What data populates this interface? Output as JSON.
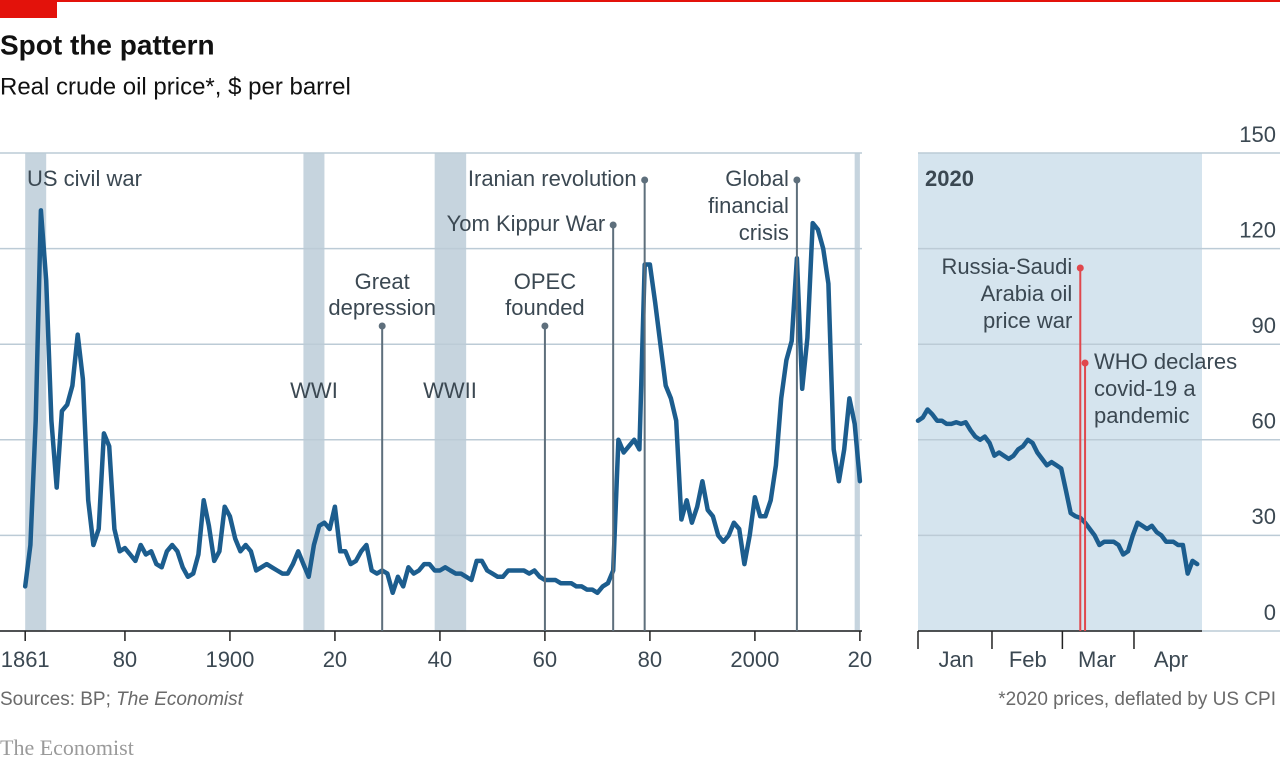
{
  "title": "Spot the pattern",
  "subtitle": "Real crude oil price*, $ per barrel",
  "chart_data": [
    {
      "type": "line",
      "color": "#1c5d8e",
      "x": [
        1861,
        1862,
        1863,
        1864,
        1865,
        1866,
        1867,
        1868,
        1869,
        1870,
        1871,
        1872,
        1873,
        1874,
        1875,
        1876,
        1877,
        1878,
        1879,
        1880,
        1881,
        1882,
        1883,
        1884,
        1885,
        1886,
        1887,
        1888,
        1889,
        1890,
        1891,
        1892,
        1893,
        1894,
        1895,
        1896,
        1897,
        1898,
        1899,
        1900,
        1901,
        1902,
        1903,
        1904,
        1905,
        1906,
        1907,
        1908,
        1909,
        1910,
        1911,
        1912,
        1913,
        1914,
        1915,
        1916,
        1917,
        1918,
        1919,
        1920,
        1921,
        1922,
        1923,
        1924,
        1925,
        1926,
        1927,
        1928,
        1929,
        1930,
        1931,
        1932,
        1933,
        1934,
        1935,
        1936,
        1937,
        1938,
        1939,
        1940,
        1941,
        1942,
        1943,
        1944,
        1945,
        1946,
        1947,
        1948,
        1949,
        1950,
        1951,
        1952,
        1953,
        1954,
        1955,
        1956,
        1957,
        1958,
        1959,
        1960,
        1961,
        1962,
        1963,
        1964,
        1965,
        1966,
        1967,
        1968,
        1969,
        1970,
        1971,
        1972,
        1973,
        1974,
        1975,
        1976,
        1977,
        1978,
        1979,
        1980,
        1981,
        1982,
        1983,
        1984,
        1985,
        1986,
        1987,
        1988,
        1989,
        1990,
        1991,
        1992,
        1993,
        1994,
        1995,
        1996,
        1997,
        1998,
        1999,
        2000,
        2001,
        2002,
        2003,
        2004,
        2005,
        2006,
        2007,
        2008,
        2009,
        2010,
        2011,
        2012,
        2013,
        2014,
        2015,
        2016,
        2017,
        2018,
        2019,
        2020
      ],
      "values": [
        14,
        27,
        66,
        132,
        110,
        66,
        45,
        69,
        71,
        77,
        93,
        79,
        41,
        27,
        32,
        62,
        58,
        32,
        25,
        26,
        24,
        22,
        27,
        24,
        25,
        21,
        20,
        25,
        27,
        25,
        20,
        17,
        18,
        24,
        41,
        33,
        22,
        25,
        39,
        36,
        29,
        25,
        27,
        25,
        19,
        20,
        21,
        20,
        19,
        18,
        18,
        21,
        25,
        21,
        17,
        27,
        33,
        34,
        32,
        39,
        25,
        25,
        21,
        22,
        25,
        27,
        19,
        18,
        19,
        18,
        12,
        17,
        14,
        20,
        18,
        19,
        21,
        21,
        19,
        19,
        20,
        19,
        18,
        18,
        17,
        16,
        22,
        22,
        19,
        18,
        17,
        17,
        19,
        19,
        19,
        19,
        18,
        19,
        17,
        16,
        16,
        16,
        15,
        15,
        15,
        14,
        14,
        13,
        13,
        12,
        14,
        15,
        19,
        60,
        56,
        58,
        60,
        57,
        115,
        115,
        103,
        90,
        77,
        73,
        66,
        35,
        41,
        34,
        39,
        47,
        38,
        36,
        30,
        28,
        30,
        34,
        32,
        21,
        30,
        42,
        36,
        36,
        41,
        52,
        73,
        85,
        91,
        117,
        76,
        92,
        128,
        126,
        120,
        109,
        57,
        47,
        57,
        73,
        65,
        47
      ],
      "xlim": [
        1856.2,
        2020.4
      ],
      "xticks": [
        1861,
        {
          "value": 1880,
          "label": "80"
        },
        1900,
        {
          "value": 1920,
          "label": "20"
        },
        {
          "value": 1940,
          "label": "40"
        },
        {
          "value": 1960,
          "label": "60"
        },
        {
          "value": 1980,
          "label": "80"
        },
        2000,
        {
          "value": 2020,
          "label": "20"
        }
      ],
      "ylim": [
        0,
        150
      ],
      "yticks": [
        0,
        30,
        60,
        90,
        120,
        150
      ],
      "grid": true,
      "band_color": "#c6d4de",
      "shaded_periods": [
        {
          "label": "US civil war",
          "range": [
            1861,
            1865
          ]
        },
        {
          "label": "WWI",
          "range": [
            1914,
            1918
          ]
        },
        {
          "label": "WWII",
          "range": [
            1939,
            1945
          ]
        },
        {
          "range": [
            2019,
            2020
          ]
        }
      ],
      "event_color": "#5e6f7c",
      "events": [
        {
          "label": [
            "Great",
            "depression"
          ],
          "x": 1929
        },
        {
          "label": [
            "OPEC",
            "founded"
          ],
          "x": 1960
        },
        {
          "label": [
            "Yom Kippur War"
          ],
          "x": 1973
        },
        {
          "label": [
            "Iranian revolution"
          ],
          "x": 1979
        },
        {
          "label": [
            "Global",
            "financial",
            "crisis"
          ],
          "x": 2008
        }
      ]
    },
    {
      "type": "line",
      "title": "2020",
      "color": "#1c5d8e",
      "background": "#d5e4ee",
      "x": [
        0,
        2,
        4,
        6,
        8,
        10,
        12,
        14,
        16,
        18,
        20,
        22,
        24,
        26,
        28,
        30,
        32,
        34,
        36,
        38,
        40,
        42,
        44,
        46,
        48,
        50,
        52,
        54,
        56,
        58,
        60,
        62,
        64,
        66,
        68,
        70,
        72,
        74,
        76,
        78,
        80,
        82,
        84,
        86,
        88,
        90,
        92,
        94,
        96,
        98,
        100,
        102,
        104,
        107,
        109,
        111,
        113,
        115,
        117
      ],
      "values": [
        66,
        67,
        69.5,
        68,
        66,
        66,
        65,
        65,
        65.5,
        65,
        65.5,
        63,
        61,
        60,
        61,
        59,
        55,
        56,
        55,
        54,
        55,
        57,
        58,
        60,
        59,
        56,
        54,
        52,
        53,
        52,
        51,
        44,
        37,
        36,
        35.5,
        34,
        32,
        30,
        27,
        28,
        28,
        28,
        27,
        24,
        25,
        30,
        34,
        33,
        32,
        33,
        31,
        30,
        28,
        28,
        27,
        27,
        18,
        22,
        21
      ],
      "xlim": [
        0,
        119
      ],
      "xticks": [
        {
          "value": 16,
          "label": "Jan"
        },
        {
          "value": 46,
          "label": "Feb"
        },
        {
          "value": 75,
          "label": "Mar"
        },
        {
          "value": 106,
          "label": "Apr"
        }
      ],
      "ylim": [
        0,
        150
      ],
      "yticks": [
        0,
        30,
        60,
        90,
        120,
        150
      ],
      "grid": true,
      "event_color": "#e0474c",
      "events": [
        {
          "label": [
            "Russia-Saudi",
            "Arabia oil",
            "price war"
          ],
          "x": 68
        },
        {
          "label": [
            "WHO declares",
            "covid-19 a",
            "pandemic"
          ],
          "x": 70
        }
      ]
    }
  ],
  "source": {
    "text": "Sources: BP; ",
    "italic": "The Economist"
  },
  "footnote": "*2020 prices, deflated by US CPI",
  "brand": "The Economist"
}
